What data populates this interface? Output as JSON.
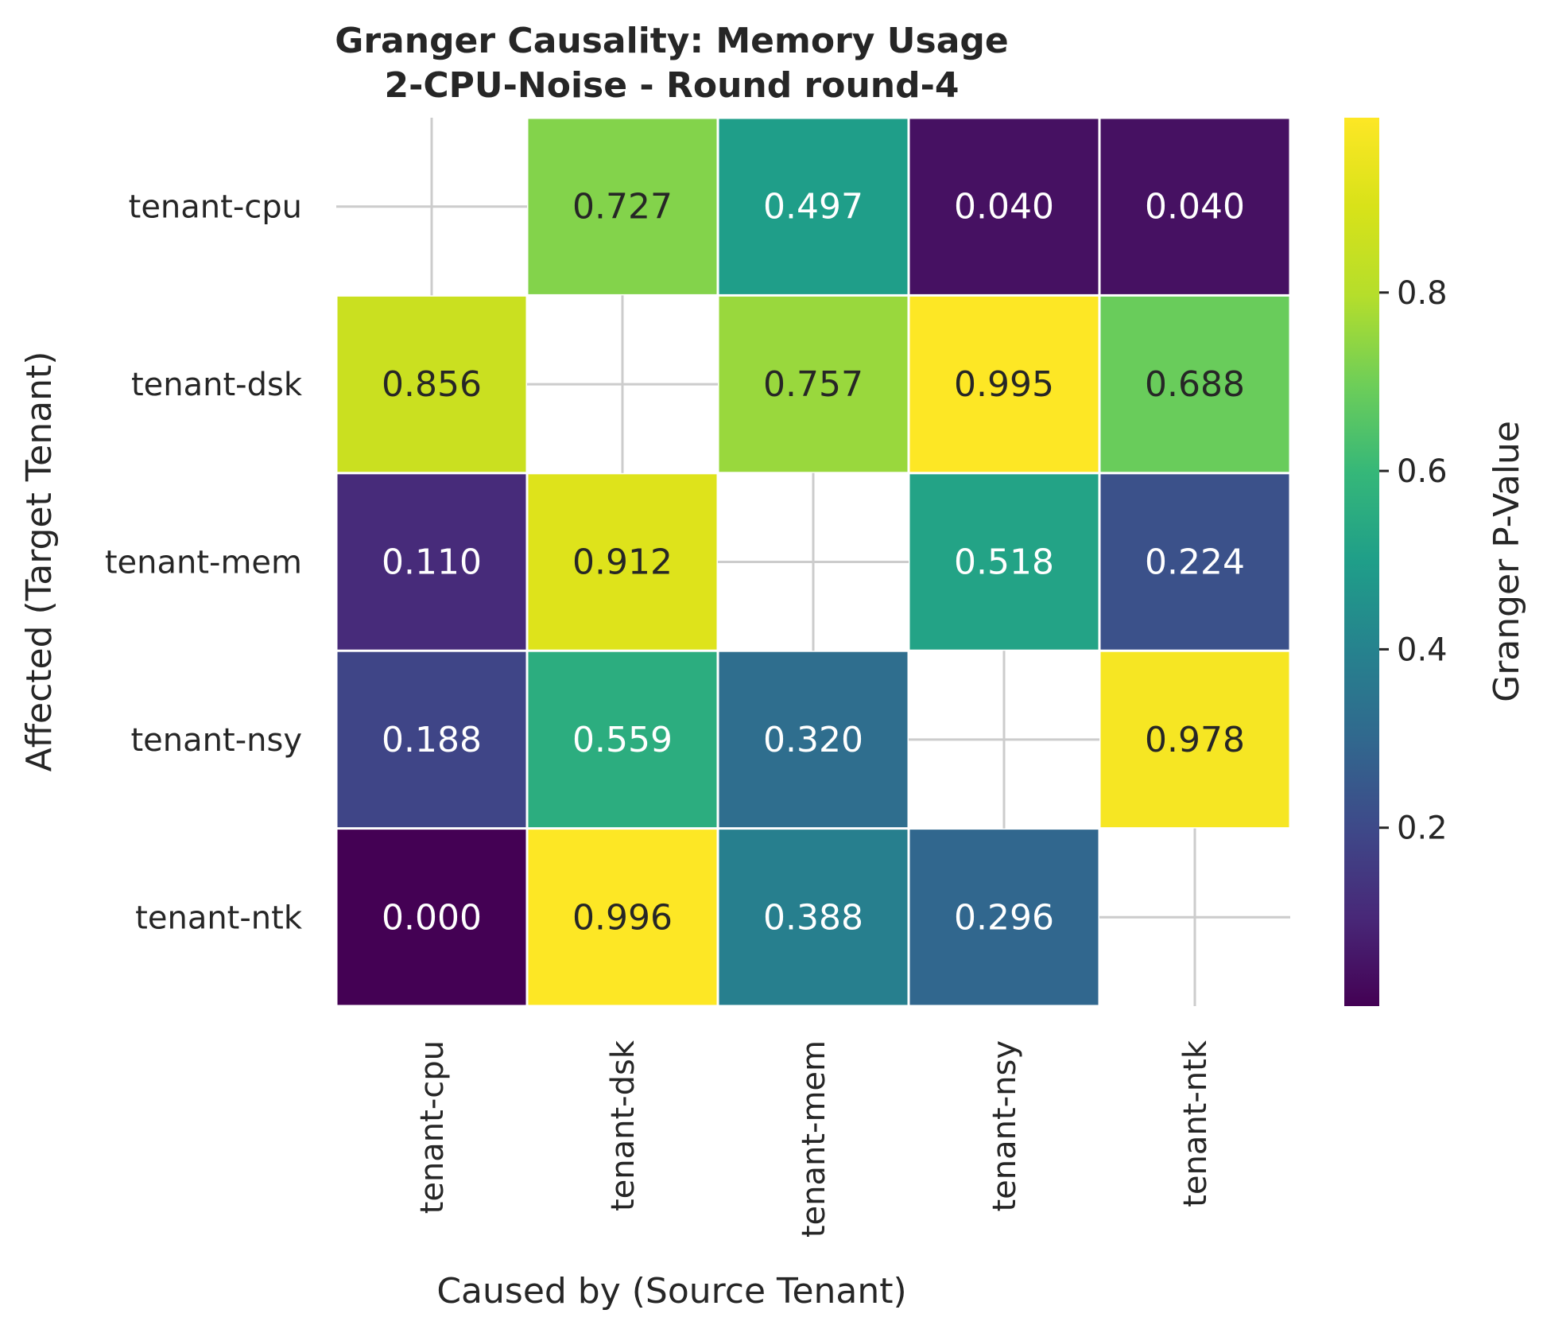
{
  "chart_data": {
    "type": "heatmap",
    "title_line1": "Granger Causality: Memory Usage",
    "title_line2": "2-CPU-Noise - Round round-4",
    "xlabel": "Caused by (Source Tenant)",
    "ylabel": "Affected (Target Tenant)",
    "x_categories": [
      "tenant-cpu",
      "tenant-dsk",
      "tenant-mem",
      "tenant-nsy",
      "tenant-ntk"
    ],
    "y_categories": [
      "tenant-cpu",
      "tenant-dsk",
      "tenant-mem",
      "tenant-nsy",
      "tenant-ntk"
    ],
    "values": [
      [
        null,
        0.727,
        0.497,
        0.04,
        0.04
      ],
      [
        0.856,
        null,
        0.757,
        0.995,
        0.688
      ],
      [
        0.11,
        0.912,
        null,
        0.518,
        0.224
      ],
      [
        0.188,
        0.559,
        0.32,
        null,
        0.978
      ],
      [
        0.0,
        0.996,
        0.388,
        0.296,
        null
      ]
    ],
    "colormap": "viridis",
    "vmin": 0.0,
    "vmax": 0.996,
    "colorbar": {
      "label": "Granger P-Value",
      "ticks": [
        0.2,
        0.4,
        0.6,
        0.8
      ],
      "tick_labels": [
        "0.2",
        "0.4",
        "0.6",
        "0.8"
      ]
    },
    "value_format": "3 decimals",
    "diagonal": "masked (blank)"
  }
}
